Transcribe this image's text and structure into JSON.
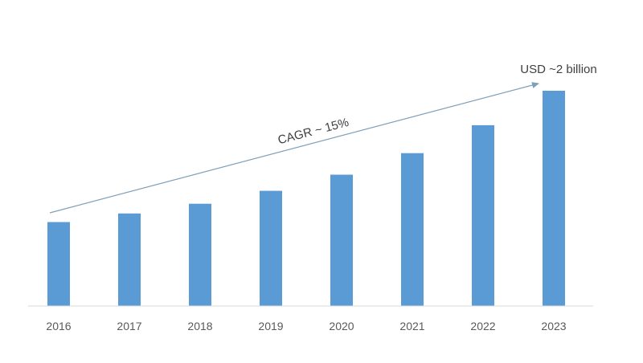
{
  "chart_data": {
    "type": "bar",
    "title": "",
    "xlabel": "",
    "ylabel": "",
    "categories": [
      "2016",
      "2017",
      "2018",
      "2019",
      "2020",
      "2021",
      "2022",
      "2023"
    ],
    "values": [
      0.78,
      0.86,
      0.95,
      1.07,
      1.22,
      1.42,
      1.68,
      2.0
    ],
    "ylim": [
      0,
      2.0
    ],
    "grid": false,
    "bar_color": "#5b9bd5",
    "arrow_color": "#7f9fb8",
    "annotations": {
      "trend_label": "CAGR ~ 15%",
      "end_value_label": "USD ~2 billion"
    }
  }
}
